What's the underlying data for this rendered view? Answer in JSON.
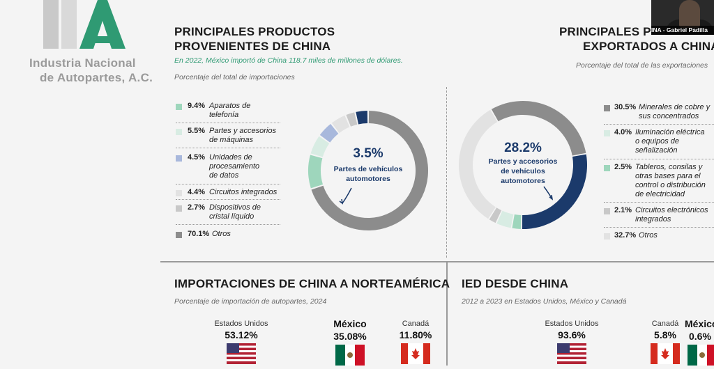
{
  "logo": {
    "line1": "Industria Nacional",
    "line2": "de Autopartes, A.C.",
    "mark_color": "#2f9a73"
  },
  "video": {
    "participant_name": "INA - Gabriel Padilla"
  },
  "imports_panel": {
    "title_line1": "PRINCIPALES PRODUCTOS",
    "title_line2": "PROVENIENTES DE CHINA",
    "note": "En 2022, México importó de China 118.7 miles de millones de dólares.",
    "subtitle": "Porcentaje del total de importaciones",
    "legend": [
      {
        "pct": "9.4%",
        "label": "Aparatos de telefonía",
        "color": "#9ed6bc"
      },
      {
        "pct": "5.5%",
        "label": "Partes y accesorios de máquinas",
        "color": "#d8ece3"
      },
      {
        "pct": "4.5%",
        "label": "Unidades de procesamiento de datos",
        "color": "#a8b8dc"
      },
      {
        "pct": "4.4%",
        "label": "Circuitos integrados",
        "color": "#e2e2e2"
      },
      {
        "pct": "2.7%",
        "label": "Dispositivos de cristal líquido",
        "color": "#c8c8c8"
      },
      {
        "pct": "70.1%",
        "label": "Otros",
        "color": "#8c8c8c"
      }
    ],
    "highlight_pct": "3.5%",
    "highlight_label_line1": "Partes de vehículos",
    "highlight_label_line2": "automotores",
    "highlight_color": "#1b3a6b"
  },
  "exports_panel": {
    "title_line1": "PRINCIPALES P",
    "title_line2": "EXPORTADOS A CHINA",
    "subtitle": "Porcentaje del total de las exportaciones",
    "legend": [
      {
        "pct": "30.5%",
        "label": "Minerales de cobre y sus concentrados",
        "color": "#8c8c8c"
      },
      {
        "pct": "4.0%",
        "label": "Iluminación eléctrica o equipos de señalización",
        "color": "#d8ece3"
      },
      {
        "pct": "2.5%",
        "label": "Tableros, consilas y otras bases para el control o distribución de electricidad",
        "color": "#9ed6bc"
      },
      {
        "pct": "2.1%",
        "label": "Circuitos electrónicos integrados",
        "color": "#c8c8c8"
      },
      {
        "pct": "32.7%",
        "label": "Otros",
        "color": "#e2e2e2"
      }
    ],
    "highlight_pct": "28.2%",
    "highlight_label_line1": "Partes y accesorios",
    "highlight_label_line2": "de vehículos",
    "highlight_label_line3": "automotores",
    "highlight_color": "#1b3a6b"
  },
  "na_imports": {
    "title": "IMPORTACIONES DE CHINA A NORTEAMÉRICA",
    "subtitle": "Porcentaje de importación de autopartes, 2024",
    "countries": [
      {
        "name": "Estados Unidos",
        "value": "53.12%"
      },
      {
        "name": "México",
        "value": "35.08%"
      },
      {
        "name": "Canadá",
        "value": "11.80%"
      }
    ]
  },
  "fdi": {
    "title": "IED DESDE CHINA",
    "subtitle": "2012 a 2023 en Estados Unidos, México y Canadá",
    "countries": [
      {
        "name": "Estados Unidos",
        "value": "93.6%"
      },
      {
        "name": "Canadá",
        "value": "5.8%"
      },
      {
        "name": "México",
        "value": "0.6%"
      }
    ]
  }
}
